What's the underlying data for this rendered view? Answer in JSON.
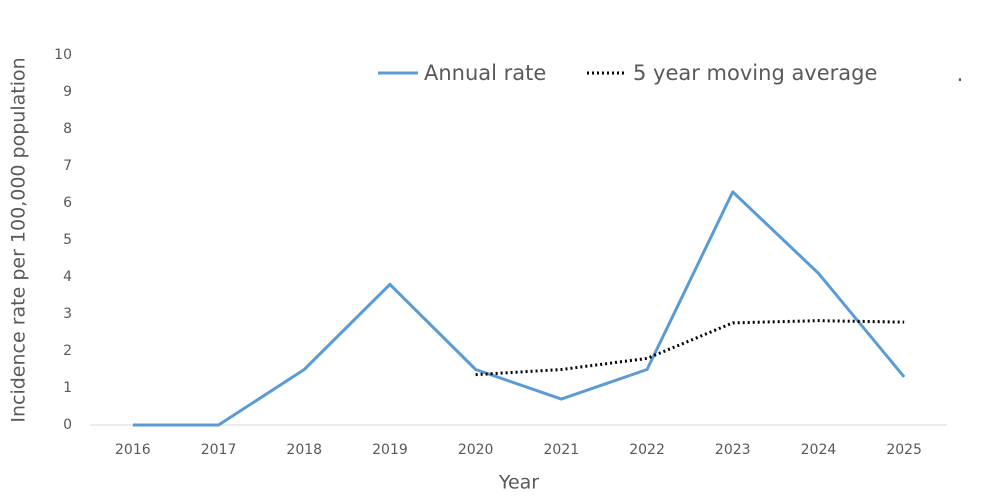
{
  "chart_data": {
    "type": "line",
    "x_label": "Year",
    "y_label": "Incidence rate per 100,000 population",
    "annotation": ".",
    "categories": [
      "2016",
      "2017",
      "2018",
      "2019",
      "2020",
      "2021",
      "2022",
      "2023",
      "2024",
      "2025"
    ],
    "series": [
      {
        "name": "Annual rate",
        "color": "#5b9bd5",
        "style": "solid",
        "values": [
          0,
          0,
          1.5,
          3.8,
          1.5,
          0.7,
          1.5,
          6.3,
          4.1,
          1.3
        ]
      },
      {
        "name": "5 year moving average",
        "color": "#000000",
        "style": "dotted",
        "values": [
          null,
          null,
          null,
          null,
          1.36,
          1.5,
          1.8,
          2.76,
          2.82,
          2.78
        ]
      }
    ],
    "ylim": [
      0,
      10
    ],
    "yticks": [
      0,
      1,
      2,
      3,
      4,
      5,
      6,
      7,
      8,
      9,
      10
    ],
    "grid": false,
    "legend": "top"
  }
}
